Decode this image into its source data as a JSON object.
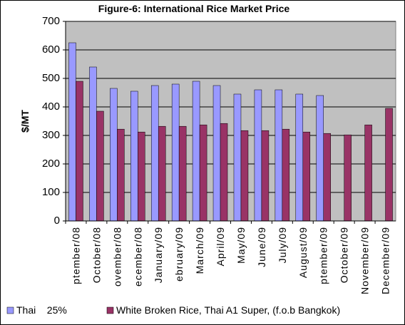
{
  "chart_data": {
    "type": "bar",
    "title": "Figure-6: International Rice Market Price",
    "y_label": "$/MT",
    "categories": [
      "ptember/08",
      "October/08",
      "ovember/08",
      "ecember/08",
      "January/09",
      "ebruary/09",
      "March/09",
      "April/09",
      "May/09",
      "June/09",
      "July/09",
      "August/09",
      "ptember/09",
      "October/09",
      "November/09",
      "December/09"
    ],
    "series": [
      {
        "name": "Thai    25%",
        "color": "#9999ff",
        "values": [
          625,
          540,
          465,
          455,
          475,
          480,
          490,
          475,
          445,
          460,
          460,
          445,
          440,
          null,
          null,
          null
        ]
      },
      {
        "name": "White Broken Rice, Thai A1 Super, (f.o.b Bangkok)",
        "color": "#993366",
        "values": [
          490,
          385,
          322,
          312,
          332,
          332,
          337,
          342,
          317,
          317,
          322,
          312,
          307,
          302,
          337,
          395
        ]
      }
    ],
    "ylim": [
      0,
      700
    ],
    "yticks": [
      0,
      100,
      200,
      300,
      400,
      500,
      600,
      700
    ],
    "grid": true,
    "plot_background": "#c0c0c0"
  }
}
